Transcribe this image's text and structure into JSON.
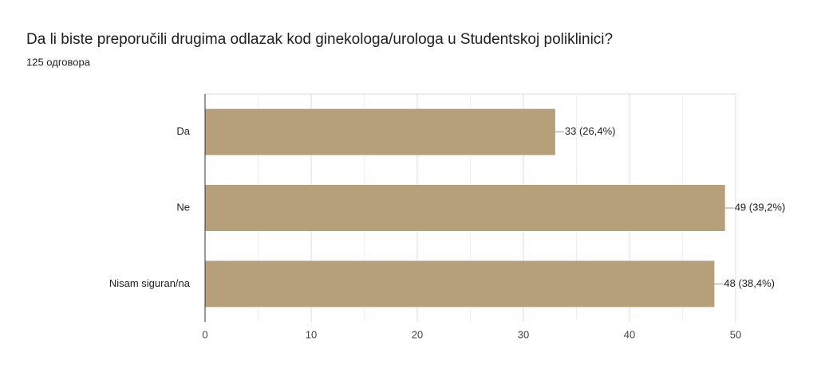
{
  "chart_data": {
    "type": "bar",
    "orientation": "horizontal",
    "title": "Da li biste preporučili drugima odlazak kod ginekologa/urologa u Studentskoj poliklinici?",
    "subtitle": "125 одговора",
    "categories": [
      "Da",
      "Ne",
      "Nisam siguran/na"
    ],
    "values": [
      33,
      49,
      48
    ],
    "value_labels": [
      "33 (26,4%)",
      "49 (39,2%)",
      "48 (38,4%)"
    ],
    "color": "#b5a07a",
    "xlim": [
      0,
      50
    ],
    "xticks": [
      0,
      10,
      20,
      30,
      40,
      50
    ],
    "minor_xticks": [
      5,
      15,
      25,
      35,
      45
    ],
    "grid": true
  }
}
